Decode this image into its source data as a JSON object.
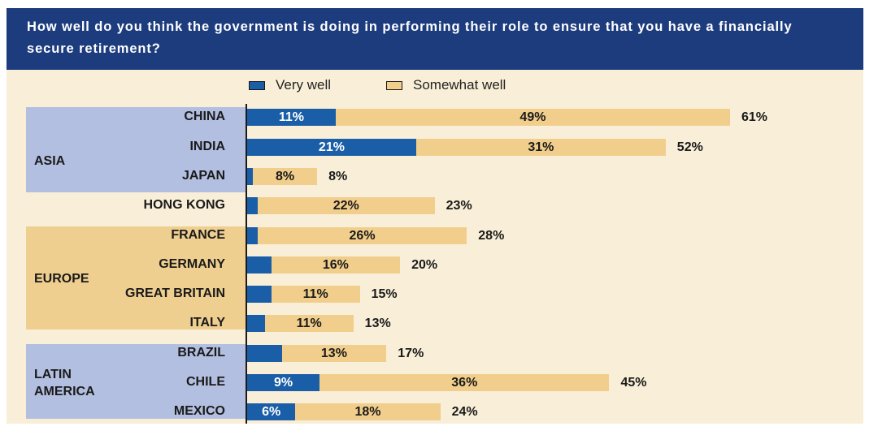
{
  "title": "How well do you think the government is doing in performing their role to ensure that you have a financially secure retirement?",
  "legend": [
    {
      "label": "Very well",
      "color": "#1a5ea8"
    },
    {
      "label": "Somewhat well",
      "color": "#f2ce8c"
    }
  ],
  "colors": {
    "header_bg": "#1d3c7e",
    "panel_bg": "#f9efd8",
    "asia_band": "#b3bfe0",
    "europe_band": "#efcf8f",
    "latin_band": "#b3bfe0"
  },
  "chart_data": {
    "type": "bar",
    "orientation": "horizontal",
    "stacked": true,
    "title": "How well do you think the government is doing in performing their role to ensure that you have a financially secure retirement?",
    "xlim": [
      0,
      65
    ],
    "groups": [
      {
        "name": "ASIA",
        "categories": [
          "CHINA",
          "INDIA",
          "JAPAN",
          "HONG KONG"
        ]
      },
      {
        "name": "EUROPE",
        "categories": [
          "FRANCE",
          "GERMANY",
          "GREAT BRITAIN",
          "ITALY"
        ]
      },
      {
        "name": "LATIN AMERICA",
        "categories": [
          "BRAZIL",
          "CHILE",
          "MEXICO"
        ]
      }
    ],
    "categories": [
      "CHINA",
      "INDIA",
      "JAPAN",
      "HONG KONG",
      "FRANCE",
      "GERMANY",
      "GREAT BRITAIN",
      "ITALY",
      "BRAZIL",
      "CHILE",
      "MEXICO"
    ],
    "series": [
      {
        "name": "Very well",
        "values": [
          11,
          21,
          0.7,
          1.3,
          1.3,
          3,
          3,
          2.2,
          4.3,
          9,
          6
        ],
        "labels": [
          "11%",
          "21%",
          "",
          "",
          "",
          "",
          "",
          "",
          "",
          "9%",
          "6%"
        ]
      },
      {
        "name": "Somewhat well",
        "values": [
          49,
          31,
          8,
          22,
          26,
          16,
          11,
          11,
          13,
          36,
          18
        ],
        "labels": [
          "49%",
          "31%",
          "8%",
          "22%",
          "26%",
          "16%",
          "11%",
          "11%",
          "13%",
          "36%",
          "18%"
        ]
      }
    ],
    "totals": [
      "61%",
      "52%",
      "8%",
      "23%",
      "28%",
      "20%",
      "15%",
      "13%",
      "17%",
      "45%",
      "24%"
    ],
    "legend_position": "top"
  }
}
